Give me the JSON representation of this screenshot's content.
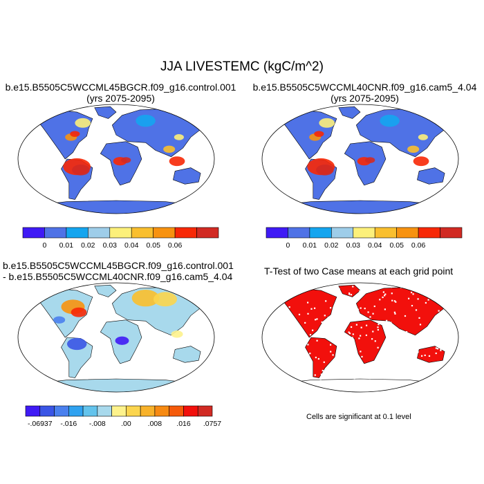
{
  "figure": {
    "title": "JJA LIVESTEMC (kgC/m^2)"
  },
  "panels": [
    {
      "id": "control",
      "title_line1": "b.e15.B5505C5WCCML45BGCR.f09_g16.control.001",
      "title_line2": "(yrs 2075-2095)",
      "colorbar": {
        "colors": [
          "#3f1af5",
          "#4f72e6",
          "#14a5ef",
          "#9ecde9",
          "#fcf07a",
          "#f9bf2e",
          "#f79210",
          "#f72806",
          "#d12a23"
        ],
        "labels": [
          "0",
          "0.01",
          "0.02",
          "0.03",
          "0.04",
          "0.05",
          "0.06"
        ]
      }
    },
    {
      "id": "cam5",
      "title_line1": "b.e15.B5505C5WCCML40CNR.f09_g16.cam5_4.04",
      "title_line2": "(yrs 2075-2095)",
      "colorbar": {
        "colors": [
          "#3f1af5",
          "#4f72e6",
          "#14a5ef",
          "#9ecde9",
          "#fcf07a",
          "#f9bf2e",
          "#f79210",
          "#f72806",
          "#d12a23"
        ],
        "labels": [
          "0",
          "0.01",
          "0.02",
          "0.03",
          "0.04",
          "0.05",
          "0.06"
        ]
      }
    },
    {
      "id": "difference",
      "title_line1": "b.e15.B5505C5WCCML45BGCR.f09_g16.control.001",
      "title_line2": "- b.e15.B5505C5WCCML40CNR.f09_g16.cam5_4.04",
      "colorbar": {
        "colors": [
          "#3f1af5",
          "#3a55e6",
          "#4a80ee",
          "#2fa2f0",
          "#63c3ec",
          "#a8d9ec",
          "#fdf28c",
          "#fbd54e",
          "#f8b22a",
          "#f78a12",
          "#f55a0a",
          "#f2100c",
          "#d12a23"
        ],
        "labels": [
          "-.06937",
          "-.016",
          "-.008",
          ".00",
          ".008",
          ".016",
          ".0757"
        ]
      }
    },
    {
      "id": "ttest",
      "title_line1": "T-Test of two Case means at each grid point",
      "note": "Cells are significant at 0.1 level"
    }
  ]
}
